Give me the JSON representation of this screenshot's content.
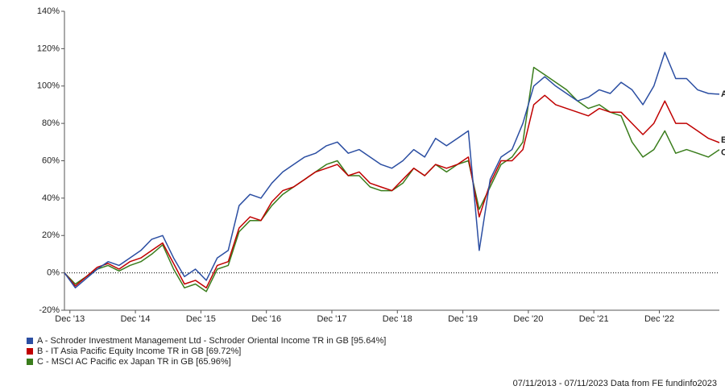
{
  "chart_data": {
    "type": "line",
    "x": [
      "2013-11",
      "2014-01",
      "2014-03",
      "2014-05",
      "2014-07",
      "2014-09",
      "2014-11",
      "2015-01",
      "2015-03",
      "2015-05",
      "2015-07",
      "2015-09",
      "2015-11",
      "2016-01",
      "2016-03",
      "2016-05",
      "2016-07",
      "2016-09",
      "2016-11",
      "2017-01",
      "2017-03",
      "2017-05",
      "2017-07",
      "2017-09",
      "2017-11",
      "2018-01",
      "2018-03",
      "2018-05",
      "2018-07",
      "2018-09",
      "2018-11",
      "2019-01",
      "2019-03",
      "2019-05",
      "2019-07",
      "2019-09",
      "2019-11",
      "2020-01",
      "2020-03",
      "2020-05",
      "2020-07",
      "2020-09",
      "2020-11",
      "2021-01",
      "2021-03",
      "2021-05",
      "2021-07",
      "2021-09",
      "2021-11",
      "2022-01",
      "2022-03",
      "2022-05",
      "2022-07",
      "2022-09",
      "2022-11",
      "2023-01",
      "2023-03",
      "2023-05",
      "2023-07",
      "2023-09",
      "2023-11"
    ],
    "xlim": [
      "2013-11",
      "2023-11"
    ],
    "xticks": [
      {
        "value": "2013-12",
        "label": "Dec '13"
      },
      {
        "value": "2014-12",
        "label": "Dec '14"
      },
      {
        "value": "2015-12",
        "label": "Dec '15"
      },
      {
        "value": "2016-12",
        "label": "Dec '16"
      },
      {
        "value": "2017-12",
        "label": "Dec '17"
      },
      {
        "value": "2018-12",
        "label": "Dec '18"
      },
      {
        "value": "2019-12",
        "label": "Dec '19"
      },
      {
        "value": "2020-12",
        "label": "Dec '20"
      },
      {
        "value": "2021-12",
        "label": "Dec '21"
      },
      {
        "value": "2022-12",
        "label": "Dec '22"
      }
    ],
    "ylim": [
      -20,
      140
    ],
    "yticks": [
      {
        "value": -20,
        "label": "-20%"
      },
      {
        "value": 0,
        "label": "0%"
      },
      {
        "value": 20,
        "label": "20%"
      },
      {
        "value": 40,
        "label": "40%"
      },
      {
        "value": 60,
        "label": "60%"
      },
      {
        "value": 80,
        "label": "80%"
      },
      {
        "value": 100,
        "label": "100%"
      },
      {
        "value": 120,
        "label": "120%"
      },
      {
        "value": 140,
        "label": "140%"
      }
    ],
    "zero_line": true,
    "series": [
      {
        "name": "A - Schroder Investment Management Ltd - Schroder Oriental Income TR in GB [95.64%]",
        "tag": "A",
        "color": "#2b4ea2",
        "values": [
          0,
          -8,
          -3,
          2,
          6,
          4,
          8,
          12,
          18,
          20,
          8,
          -2,
          2,
          -4,
          8,
          12,
          36,
          42,
          40,
          48,
          54,
          58,
          62,
          64,
          68,
          70,
          64,
          66,
          62,
          58,
          56,
          60,
          66,
          62,
          72,
          68,
          72,
          76,
          12,
          50,
          62,
          66,
          80,
          100,
          105,
          100,
          96,
          92,
          94,
          98,
          96,
          102,
          98,
          90,
          100,
          118,
          104,
          104,
          98,
          96,
          95.64
        ]
      },
      {
        "name": "B - IT Asia Pacific Equity Income TR in GB [69.72%]",
        "tag": "B",
        "color": "#c00000",
        "values": [
          0,
          -7,
          -2,
          3,
          5,
          2,
          6,
          8,
          12,
          16,
          5,
          -6,
          -4,
          -8,
          4,
          6,
          24,
          30,
          28,
          38,
          44,
          46,
          50,
          54,
          56,
          58,
          52,
          54,
          48,
          46,
          44,
          50,
          56,
          52,
          58,
          56,
          58,
          62,
          30,
          48,
          60,
          60,
          66,
          90,
          95,
          90,
          88,
          86,
          84,
          88,
          86,
          86,
          80,
          74,
          80,
          92,
          80,
          80,
          76,
          72,
          69.72
        ]
      },
      {
        "name": "C - MSCI AC Pacific ex Japan TR in GB [65.96%]",
        "tag": "C",
        "color": "#3a7d1c",
        "values": [
          0,
          -6,
          -2,
          2,
          4,
          1,
          4,
          6,
          10,
          15,
          2,
          -8,
          -6,
          -10,
          2,
          4,
          22,
          28,
          28,
          36,
          42,
          46,
          50,
          54,
          58,
          60,
          52,
          52,
          46,
          44,
          44,
          48,
          56,
          52,
          58,
          54,
          58,
          60,
          34,
          46,
          58,
          62,
          70,
          110,
          106,
          102,
          98,
          92,
          88,
          90,
          86,
          84,
          70,
          62,
          66,
          76,
          64,
          66,
          64,
          62,
          65.96
        ]
      }
    ],
    "footer": "07/11/2013 - 07/11/2023 Data from FE fundinfo2023"
  }
}
